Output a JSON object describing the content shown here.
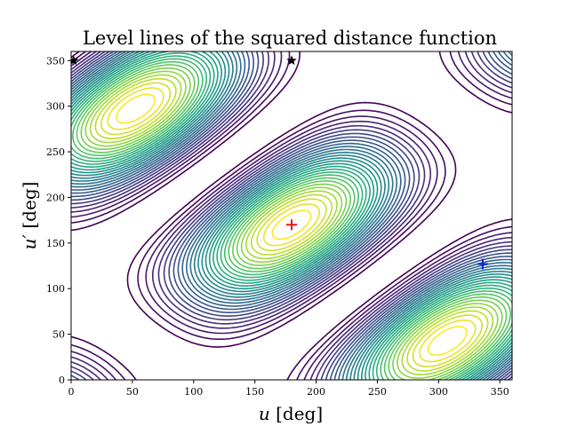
{
  "chart_data": {
    "type": "contour",
    "title": "Level lines of the squared distance function",
    "xlabel": "u [deg]",
    "xlabel_var": "u",
    "xlabel_unit": " [deg]",
    "ylabel": "u′ [deg]",
    "ylabel_var": "u′",
    "ylabel_unit": " [deg]",
    "xlim": [
      0,
      360
    ],
    "ylim": [
      0,
      360
    ],
    "xticks": [
      0,
      50,
      100,
      150,
      200,
      250,
      300,
      350
    ],
    "yticks": [
      0,
      50,
      100,
      150,
      200,
      250,
      300,
      350
    ],
    "grid": false,
    "colormap": "viridis",
    "contour_levels": 30,
    "level_range": [
      0.05,
      0.97
    ],
    "function": {
      "center": [
        180,
        170
      ],
      "rotation_deg": 45,
      "major_period": 360,
      "minor_period": 180
    },
    "markers": [
      {
        "name": "min",
        "shape": "plus",
        "x": 180,
        "y": 170,
        "color": "#e8101a"
      },
      {
        "name": "plus-blue",
        "shape": "plus",
        "x": 336,
        "y": 127,
        "color": "#1020e0"
      },
      {
        "name": "star-1",
        "shape": "star",
        "x": 2,
        "y": 350,
        "color": "#000000"
      },
      {
        "name": "star-2",
        "shape": "star",
        "x": 180,
        "y": 350,
        "color": "#000000"
      }
    ]
  }
}
